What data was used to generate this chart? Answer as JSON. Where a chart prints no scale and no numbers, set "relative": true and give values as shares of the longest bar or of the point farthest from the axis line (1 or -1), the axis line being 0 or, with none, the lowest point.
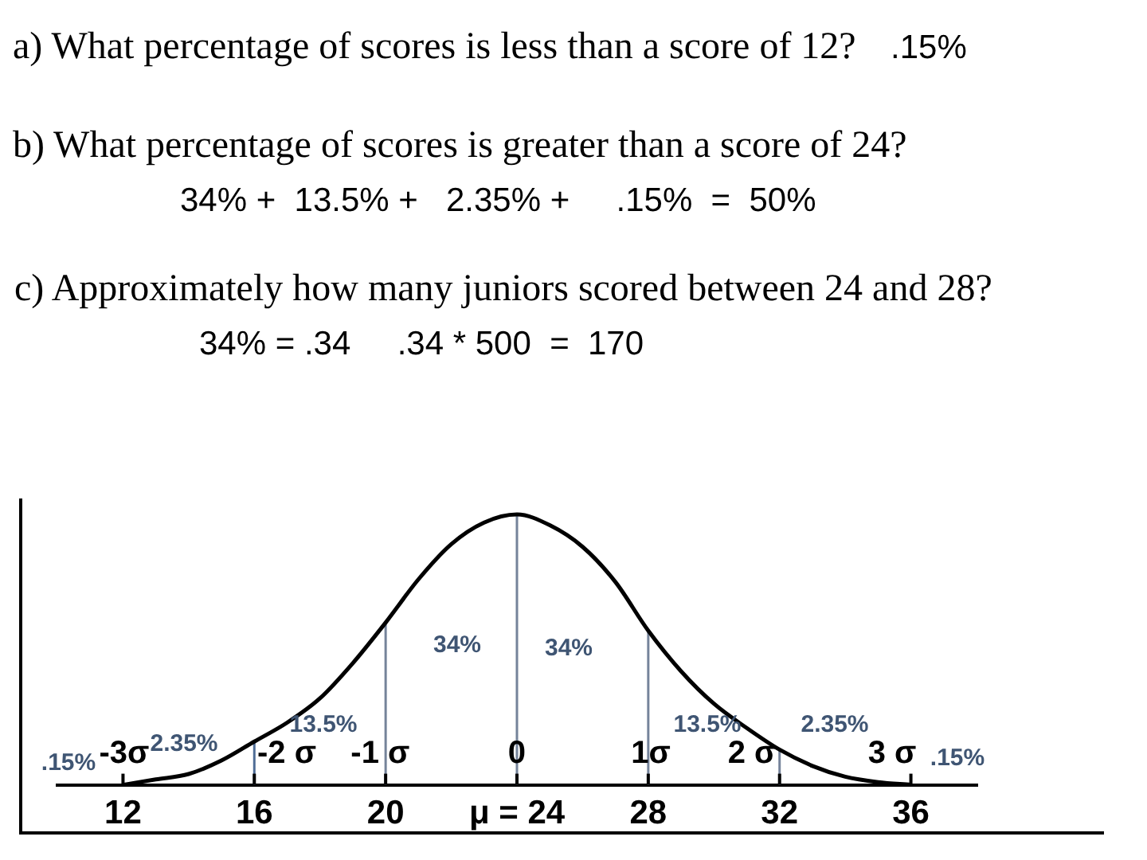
{
  "chart_data": {
    "type": "line",
    "relative": true,
    "annotations": [
      "a) What percentage of scores is less than a score of 12?",
      ".15%",
      "b) What percentage of scores is greater than a score of 24?",
      "34% +  13.5% +   2.35% +     .15%  =  50%",
      "c) Approximately how many juniors scored between 24 and 28?",
      "34% = .34     .34 * 500  =  170",
      ".15%",
      "-3σ",
      "2.35%",
      "-2 σ",
      "13.5%",
      "-1 σ",
      "34%",
      "0",
      "34%",
      "1σ",
      "13.5%",
      "2 σ",
      "2.35%",
      "3 σ",
      ".15%"
    ],
    "x": [
      12,
      13,
      14,
      15,
      16,
      17,
      18,
      19,
      20,
      21,
      22,
      23,
      24,
      25,
      26,
      27,
      28,
      29,
      30,
      31,
      32,
      33,
      34,
      35,
      36
    ],
    "values": [
      0,
      0.02,
      0.04,
      0.09,
      0.16,
      0.23,
      0.32,
      0.45,
      0.6,
      0.76,
      0.89,
      0.97,
      1,
      0.96,
      0.88,
      0.75,
      0.57,
      0.42,
      0.3,
      0.21,
      0.13,
      0.07,
      0.03,
      0.01,
      0
    ],
    "color": "#000000",
    "marker": "none",
    "xlim": [
      10,
      38
    ],
    "xticks": [
      12,
      16,
      20,
      {
        "value": 24,
        "label": "μ = 24"
      },
      28,
      32,
      36
    ],
    "ref_lines": [
      {
        "axis": "x",
        "value": 16,
        "color": "#4f6d96"
      },
      {
        "axis": "x",
        "value": 20,
        "color": "#75839a"
      },
      {
        "axis": "x",
        "value": 24,
        "color": "#75839a"
      },
      {
        "axis": "x",
        "value": 28,
        "color": "#75839a"
      },
      {
        "axis": "x",
        "value": 32,
        "color": "#75839a"
      }
    ]
  }
}
